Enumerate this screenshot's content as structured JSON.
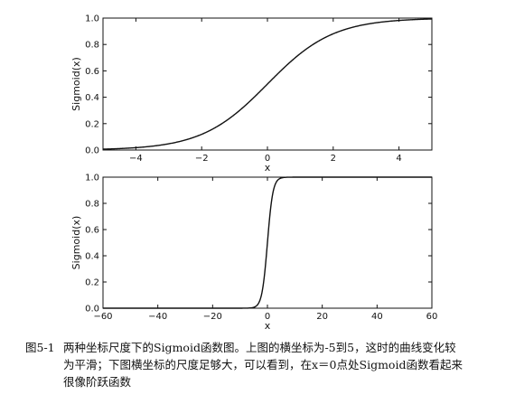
{
  "caption": {
    "figure_number": "图5-1",
    "line1": "两种坐标尺度下的Sigmoid函数图。上图的横坐标为-5到5，这时的曲线变化较",
    "line2": "为平滑；下图横坐标的尺度足够大，可以看到，在x＝0点处Sigmoid函数看起来",
    "line3": "很像阶跃函数"
  },
  "chart_data": [
    {
      "type": "line",
      "function": "sigmoid",
      "title": "",
      "xlabel": "x",
      "ylabel": "Sigmoid(x)",
      "xlim": [
        -5,
        5
      ],
      "ylim": [
        0,
        1
      ],
      "xticks": [
        -4,
        -2,
        0,
        2,
        4
      ],
      "yticks": [
        0.0,
        0.2,
        0.4,
        0.6,
        0.8,
        1.0
      ],
      "xtick_labels": [
        "−4",
        "−2",
        "0",
        "2",
        "4"
      ],
      "ytick_labels": [
        "0.0",
        "0.2",
        "0.4",
        "0.6",
        "0.8",
        "1.0"
      ],
      "grid": false,
      "x": [
        -5,
        -4,
        -3,
        -2,
        -1,
        0,
        1,
        2,
        3,
        4,
        5
      ],
      "y": [
        0.007,
        0.018,
        0.047,
        0.119,
        0.269,
        0.5,
        0.731,
        0.881,
        0.953,
        0.982,
        0.993
      ]
    },
    {
      "type": "line",
      "function": "sigmoid",
      "title": "",
      "xlabel": "x",
      "ylabel": "Sigmoid(x)",
      "xlim": [
        -60,
        60
      ],
      "ylim": [
        0,
        1
      ],
      "xticks": [
        -60,
        -40,
        -20,
        0,
        20,
        40,
        60
      ],
      "yticks": [
        0.0,
        0.2,
        0.4,
        0.6,
        0.8,
        1.0
      ],
      "xtick_labels": [
        "−60",
        "−40",
        "−20",
        "0",
        "20",
        "40",
        "60"
      ],
      "ytick_labels": [
        "0.0",
        "0.2",
        "0.4",
        "0.6",
        "0.8",
        "1.0"
      ],
      "grid": false,
      "x": [
        -60,
        -5,
        -4,
        -3,
        -2,
        -1,
        0,
        1,
        2,
        3,
        4,
        5,
        60
      ],
      "y": [
        0.0,
        0.007,
        0.018,
        0.047,
        0.119,
        0.269,
        0.5,
        0.731,
        0.881,
        0.953,
        0.982,
        0.993,
        1.0
      ]
    }
  ]
}
